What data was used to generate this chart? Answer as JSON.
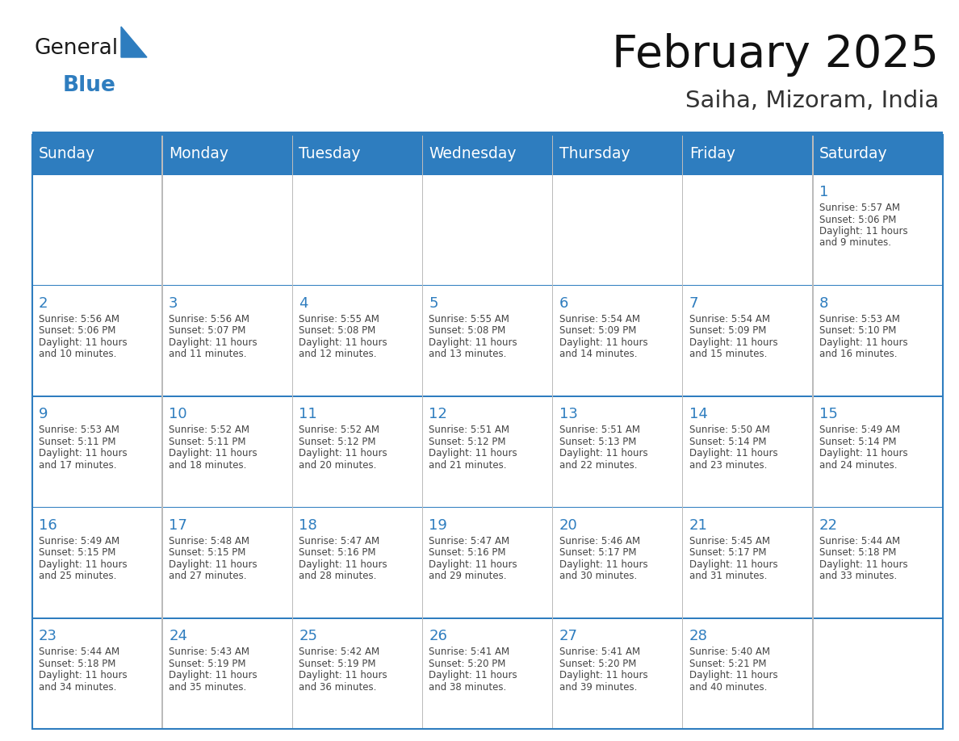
{
  "title": "February 2025",
  "subtitle": "Saiha, Mizoram, India",
  "header_color": "#2E7DBF",
  "header_text_color": "#FFFFFF",
  "days_of_week": [
    "Sunday",
    "Monday",
    "Tuesday",
    "Wednesday",
    "Thursday",
    "Friday",
    "Saturday"
  ],
  "background_color": "#FFFFFF",
  "grid_line_color": "#2E7DBF",
  "day_number_color": "#2E7DBF",
  "text_color": "#444444",
  "logo_general_color": "#1A1A1A",
  "logo_blue_color": "#2E7DBF",
  "calendar_data": [
    [
      null,
      null,
      null,
      null,
      null,
      null,
      {
        "day": 1,
        "sunrise": "5:57 AM",
        "sunset": "5:06 PM",
        "daylight": "11 hours and 9 minutes"
      }
    ],
    [
      {
        "day": 2,
        "sunrise": "5:56 AM",
        "sunset": "5:06 PM",
        "daylight": "11 hours and 10 minutes"
      },
      {
        "day": 3,
        "sunrise": "5:56 AM",
        "sunset": "5:07 PM",
        "daylight": "11 hours and 11 minutes"
      },
      {
        "day": 4,
        "sunrise": "5:55 AM",
        "sunset": "5:08 PM",
        "daylight": "11 hours and 12 minutes"
      },
      {
        "day": 5,
        "sunrise": "5:55 AM",
        "sunset": "5:08 PM",
        "daylight": "11 hours and 13 minutes"
      },
      {
        "day": 6,
        "sunrise": "5:54 AM",
        "sunset": "5:09 PM",
        "daylight": "11 hours and 14 minutes"
      },
      {
        "day": 7,
        "sunrise": "5:54 AM",
        "sunset": "5:09 PM",
        "daylight": "11 hours and 15 minutes"
      },
      {
        "day": 8,
        "sunrise": "5:53 AM",
        "sunset": "5:10 PM",
        "daylight": "11 hours and 16 minutes"
      }
    ],
    [
      {
        "day": 9,
        "sunrise": "5:53 AM",
        "sunset": "5:11 PM",
        "daylight": "11 hours and 17 minutes"
      },
      {
        "day": 10,
        "sunrise": "5:52 AM",
        "sunset": "5:11 PM",
        "daylight": "11 hours and 18 minutes"
      },
      {
        "day": 11,
        "sunrise": "5:52 AM",
        "sunset": "5:12 PM",
        "daylight": "11 hours and 20 minutes"
      },
      {
        "day": 12,
        "sunrise": "5:51 AM",
        "sunset": "5:12 PM",
        "daylight": "11 hours and 21 minutes"
      },
      {
        "day": 13,
        "sunrise": "5:51 AM",
        "sunset": "5:13 PM",
        "daylight": "11 hours and 22 minutes"
      },
      {
        "day": 14,
        "sunrise": "5:50 AM",
        "sunset": "5:14 PM",
        "daylight": "11 hours and 23 minutes"
      },
      {
        "day": 15,
        "sunrise": "5:49 AM",
        "sunset": "5:14 PM",
        "daylight": "11 hours and 24 minutes"
      }
    ],
    [
      {
        "day": 16,
        "sunrise": "5:49 AM",
        "sunset": "5:15 PM",
        "daylight": "11 hours and 25 minutes"
      },
      {
        "day": 17,
        "sunrise": "5:48 AM",
        "sunset": "5:15 PM",
        "daylight": "11 hours and 27 minutes"
      },
      {
        "day": 18,
        "sunrise": "5:47 AM",
        "sunset": "5:16 PM",
        "daylight": "11 hours and 28 minutes"
      },
      {
        "day": 19,
        "sunrise": "5:47 AM",
        "sunset": "5:16 PM",
        "daylight": "11 hours and 29 minutes"
      },
      {
        "day": 20,
        "sunrise": "5:46 AM",
        "sunset": "5:17 PM",
        "daylight": "11 hours and 30 minutes"
      },
      {
        "day": 21,
        "sunrise": "5:45 AM",
        "sunset": "5:17 PM",
        "daylight": "11 hours and 31 minutes"
      },
      {
        "day": 22,
        "sunrise": "5:44 AM",
        "sunset": "5:18 PM",
        "daylight": "11 hours and 33 minutes"
      }
    ],
    [
      {
        "day": 23,
        "sunrise": "5:44 AM",
        "sunset": "5:18 PM",
        "daylight": "11 hours and 34 minutes"
      },
      {
        "day": 24,
        "sunrise": "5:43 AM",
        "sunset": "5:19 PM",
        "daylight": "11 hours and 35 minutes"
      },
      {
        "day": 25,
        "sunrise": "5:42 AM",
        "sunset": "5:19 PM",
        "daylight": "11 hours and 36 minutes"
      },
      {
        "day": 26,
        "sunrise": "5:41 AM",
        "sunset": "5:20 PM",
        "daylight": "11 hours and 38 minutes"
      },
      {
        "day": 27,
        "sunrise": "5:41 AM",
        "sunset": "5:20 PM",
        "daylight": "11 hours and 39 minutes"
      },
      {
        "day": 28,
        "sunrise": "5:40 AM",
        "sunset": "5:21 PM",
        "daylight": "11 hours and 40 minutes"
      },
      null
    ]
  ]
}
